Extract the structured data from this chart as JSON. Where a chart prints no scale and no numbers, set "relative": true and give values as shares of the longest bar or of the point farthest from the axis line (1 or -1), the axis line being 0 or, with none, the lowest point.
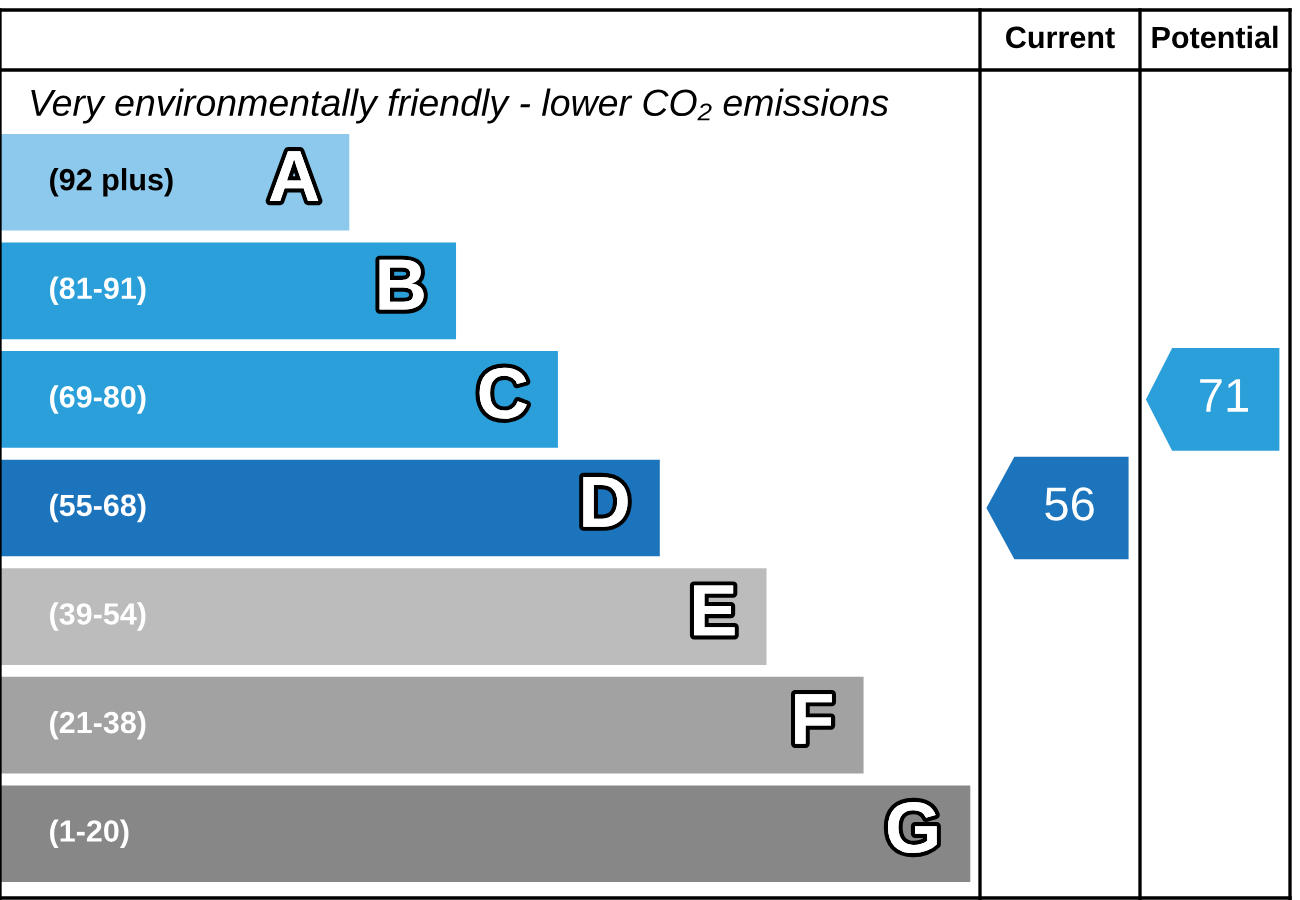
{
  "chart_data": {
    "type": "bar",
    "orientation": "horizontal",
    "relative": true,
    "title": "Very environmentally friendly - lower CO₂ emissions",
    "categories": [
      "A",
      "B",
      "C",
      "D",
      "E",
      "F",
      "G"
    ],
    "values": [
      0.36,
      0.47,
      0.575,
      0.68,
      0.79,
      0.89,
      1
    ],
    "colors": [
      "#8cc9ec",
      "#2a9fda",
      "#2a9fda",
      "#1c75bc",
      "#bcbcbc",
      "#a2a2a2",
      "#878787"
    ],
    "annotations": [
      "Current",
      "Potential",
      "(92 plus)",
      "(81-91)",
      "(69-80)",
      "(55-68)",
      "(39-54)",
      "(21-38)",
      "(1-20)",
      "56",
      "71"
    ]
  }
}
